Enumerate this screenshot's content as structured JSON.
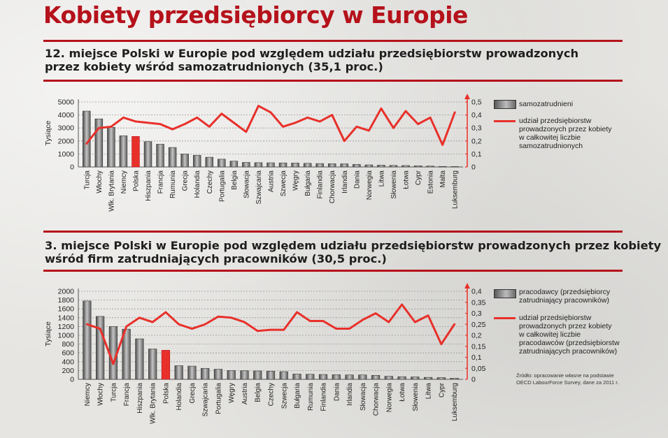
{
  "title": "Kobiety przedsiębiorcy w Europie",
  "colors": {
    "accent": "#b5121b",
    "line": "#e8302a",
    "highlight": "#e8302a",
    "bar": "#8a8a8a"
  },
  "source": [
    "Źródło: opracowanie własne na podstawie",
    "OECD LabourForce Survey, dane za 2011 r."
  ],
  "chart_data": [
    {
      "type": "bar",
      "subtitle": [
        "12. miejsce Polski w Europie pod względem udziału przedsiębiorstw prowadzonych",
        "przez kobiety wśród samozatrudnionych (35,1 proc.)"
      ],
      "ylabel": "Tysiące",
      "ylim": [
        0,
        5000
      ],
      "y_ticks": [
        "0",
        "1000",
        "2000",
        "3000",
        "4000",
        "5000"
      ],
      "y2lim": [
        0,
        0.5
      ],
      "y2_ticks": [
        "0",
        "0,1",
        "0,2",
        "0,3",
        "0,4",
        "0,5"
      ],
      "highlight": "Polska",
      "legend_position": "right",
      "categories": [
        "Turcja",
        "Włochy",
        "Wlk. Brytania",
        "Niemcy",
        "Polska",
        "Hiszpania",
        "Francja",
        "Rumunia",
        "Grecja",
        "Holandia",
        "Czechy",
        "Portugalia",
        "Belgia",
        "Słowacja",
        "Szwajcaria",
        "Austria",
        "Szwecja",
        "Węgry",
        "Bułgaria",
        "Finlandia",
        "Chorwacja",
        "Irlandia",
        "Dania",
        "Norwegia",
        "Litwa",
        "Słowenia",
        "Łotwa",
        "Cypr",
        "Estonia",
        "Malta",
        "Luksemburg"
      ],
      "series": [
        {
          "name": "samozatrudnieni",
          "kind": "bar",
          "values": [
            4300,
            3700,
            3050,
            2400,
            2350,
            1950,
            1750,
            1500,
            1000,
            900,
            750,
            600,
            450,
            350,
            330,
            320,
            310,
            300,
            280,
            260,
            250,
            240,
            200,
            160,
            140,
            120,
            110,
            90,
            70,
            40,
            30
          ]
        },
        {
          "name": [
            "udział przedsiębiorstw",
            "prowadzonych przez kobiety",
            "w całkowitej liczbie",
            "samozatrudnionych"
          ],
          "kind": "line",
          "axis": "right",
          "values": [
            0.18,
            0.3,
            0.31,
            0.38,
            0.35,
            0.34,
            0.33,
            0.29,
            0.33,
            0.38,
            0.31,
            0.41,
            0.34,
            0.27,
            0.47,
            0.42,
            0.31,
            0.34,
            0.38,
            0.35,
            0.4,
            0.2,
            0.31,
            0.28,
            0.45,
            0.3,
            0.43,
            0.33,
            0.38,
            0.17,
            0.42
          ]
        }
      ]
    },
    {
      "type": "bar",
      "subtitle": [
        "3. miejsce Polski w Europie pod względem udziału przedsiębiorstw prowadzonych przez kobiety",
        "wśród firm zatrudniających pracowników (30,5 proc.)"
      ],
      "ylabel": "Tysiące",
      "ylim": [
        0,
        2000
      ],
      "y_ticks": [
        "0",
        "200",
        "400",
        "600",
        "800",
        "1000",
        "1200",
        "1400",
        "1600",
        "1800",
        "2000"
      ],
      "y2lim": [
        0,
        0.4
      ],
      "y2_ticks": [
        "0",
        "0,05",
        "0,1",
        "0,15",
        "0,2",
        "0,25",
        "0,3",
        "0,35",
        "0,4"
      ],
      "highlight": "Polska",
      "legend_position": "right",
      "categories": [
        "Niemcy",
        "Włochy",
        "Turcja",
        "Francja",
        "Hiszpania",
        "Wlk. Brytania",
        "Polska",
        "Holandia",
        "Grecja",
        "Szwajcaria",
        "Portugalia",
        "Węgry",
        "Austria",
        "Belgia",
        "Czechy",
        "Szwecja",
        "Bułgaria",
        "Rumunia",
        "Finlandia",
        "Dania",
        "Irlandia",
        "Słowacja",
        "Chorwacja",
        "Norwegia",
        "Łotwa",
        "Słowenia",
        "Litwa",
        "Cypr",
        "Luksemburg"
      ],
      "series": [
        {
          "name": [
            "pracodawcy (przedsiębiorcy",
            "zatrudniający pracowników)"
          ],
          "kind": "bar",
          "values": [
            1780,
            1430,
            1200,
            1140,
            920,
            690,
            660,
            310,
            300,
            250,
            230,
            200,
            195,
            190,
            185,
            175,
            120,
            115,
            110,
            105,
            100,
            100,
            90,
            70,
            60,
            55,
            45,
            40,
            25
          ]
        },
        {
          "name": [
            "udział przedsiębiorstw",
            "prowadzonych przez kobiety",
            "w całkowitej liczbie",
            "pracodawców (przedsiębiorstw",
            "zatrudniających pracowników)"
          ],
          "kind": "line",
          "axis": "right",
          "values": [
            0.25,
            0.23,
            0.07,
            0.24,
            0.28,
            0.26,
            0.305,
            0.25,
            0.23,
            0.25,
            0.285,
            0.28,
            0.26,
            0.22,
            0.225,
            0.225,
            0.305,
            0.265,
            0.265,
            0.23,
            0.23,
            0.27,
            0.3,
            0.26,
            0.34,
            0.26,
            0.29,
            0.16,
            0.25
          ]
        }
      ]
    }
  ]
}
